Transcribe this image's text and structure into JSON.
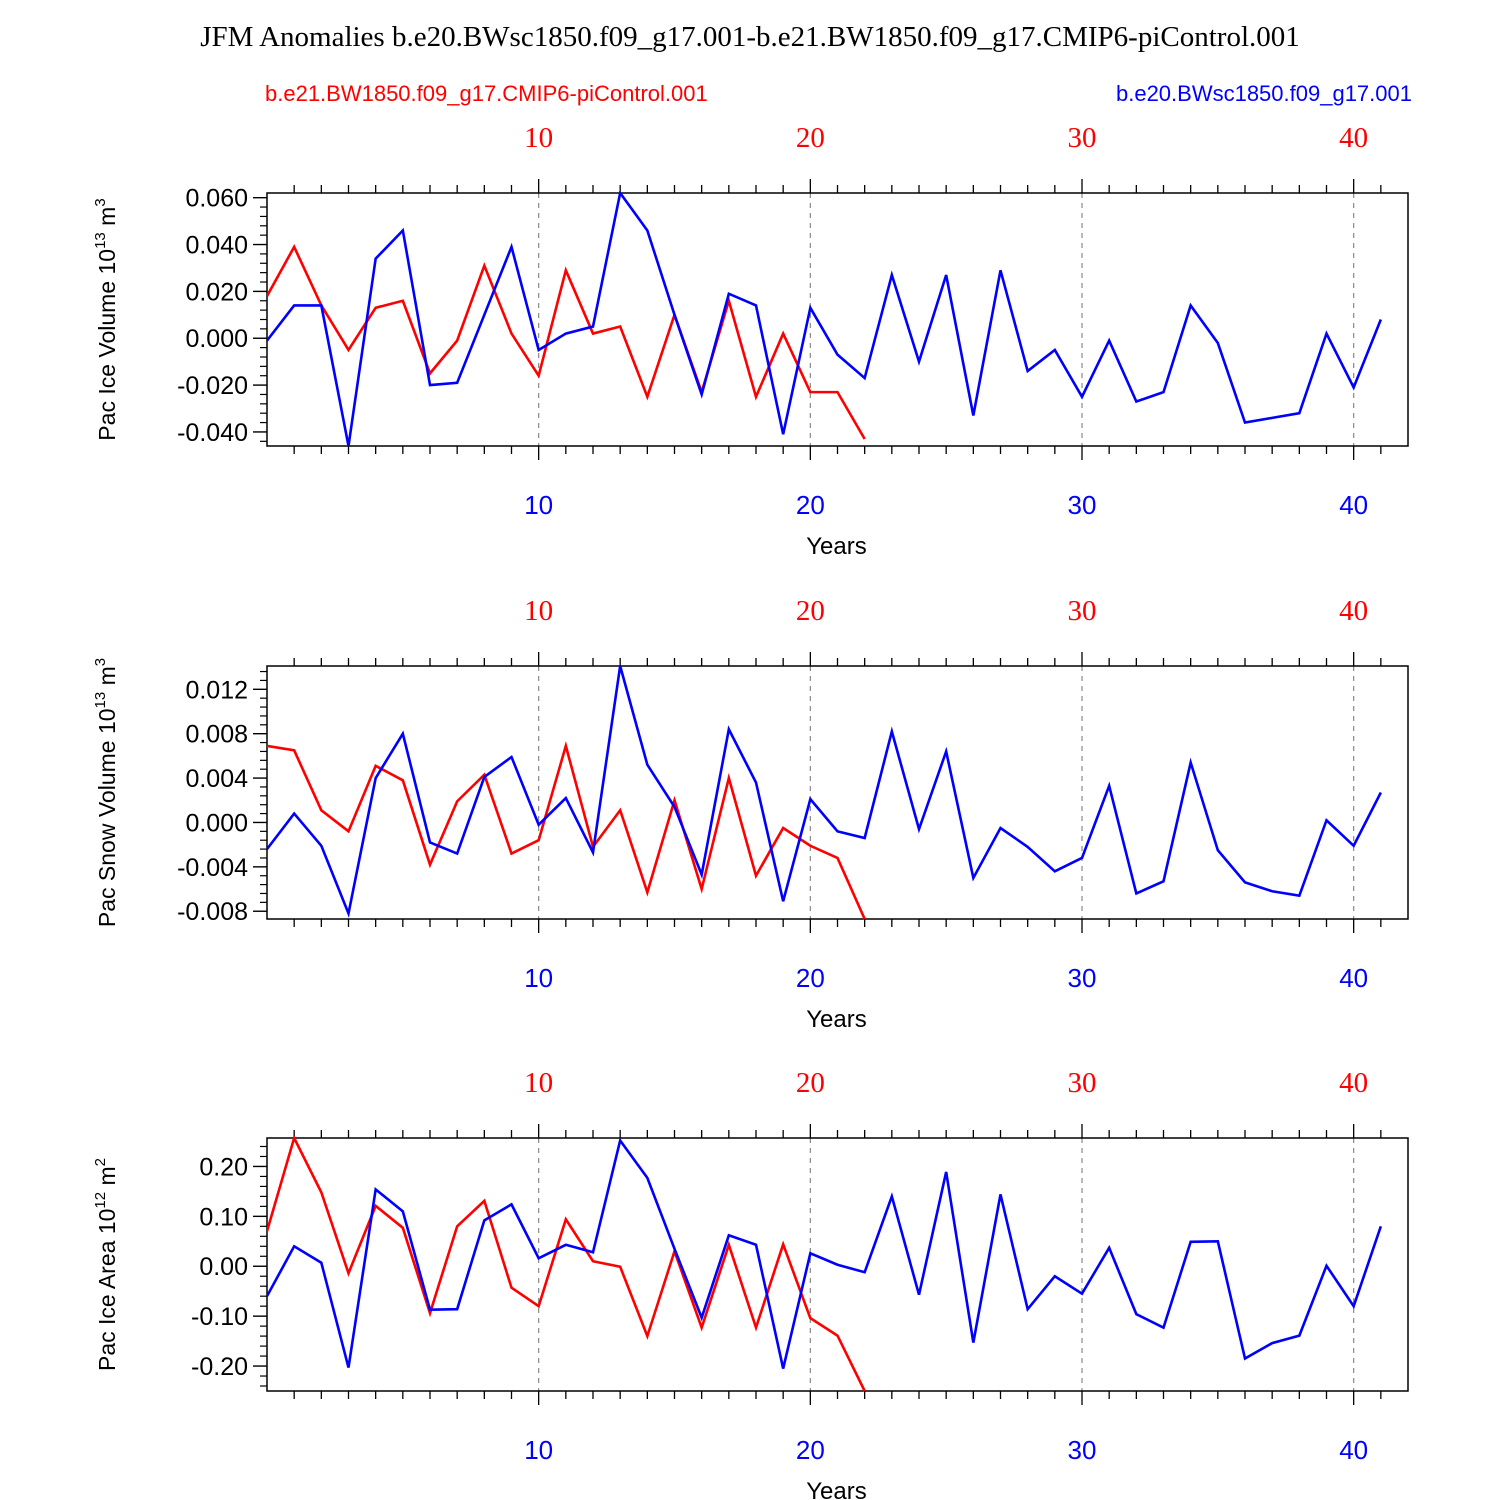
{
  "title": "JFM Anomalies b.e20.BWsc1850.f09_g17.001-b.e21.BW1850.f09_g17.CMIP6-piControl.001",
  "legend": {
    "red_label": "b.e21.BW1850.f09_g17.CMIP6-piControl.001",
    "blue_label": "b.e20.BWsc1850.f09_g17.001"
  },
  "colors": {
    "red": "#ff0000",
    "blue": "#0000ff",
    "axis": "#000000",
    "grid": "#888888"
  },
  "chart_data": [
    {
      "type": "line",
      "ylabel": "Pac Ice Volume 10",
      "ylabel_sup": "13",
      "ylabel_unit": " m",
      "ylabel_unit_sup": "3",
      "xlabel": "Years",
      "xlim": [
        0,
        42
      ],
      "ylim": [
        -0.046,
        0.062
      ],
      "yticks": [
        -0.04,
        -0.02,
        0.0,
        0.02,
        0.04,
        0.06
      ],
      "ytick_labels": [
        "-0.040",
        "-0.020",
        "0.000",
        "0.020",
        "0.040",
        "0.060"
      ],
      "yminor_step": 0.004,
      "xticks": [
        10,
        20,
        30,
        40
      ],
      "xtick_labels": [
        "10",
        "20",
        "30",
        "40"
      ],
      "series": [
        {
          "name": "b.e21.BW1850.f09_g17.CMIP6-piControl.001",
          "color": "red",
          "values": [
            0.018,
            0.039,
            0.014,
            -0.005,
            0.013,
            0.016,
            -0.015,
            -0.001,
            0.031,
            0.002,
            -0.016,
            0.029,
            0.002,
            0.005,
            -0.025,
            0.01,
            -0.023,
            0.016,
            -0.025,
            0.002,
            -0.023,
            -0.023,
            -0.043
          ]
        },
        {
          "name": "b.e20.BWsc1850.f09_g17.001",
          "color": "blue",
          "values": [
            -0.001,
            0.014,
            0.014,
            -0.046,
            0.034,
            0.046,
            -0.02,
            -0.019,
            0.01,
            0.039,
            -0.005,
            0.002,
            0.005,
            0.062,
            0.046,
            0.01,
            -0.024,
            0.019,
            0.014,
            -0.041,
            0.013,
            -0.007,
            -0.017,
            0.027,
            -0.01,
            0.027,
            -0.033,
            0.029,
            -0.014,
            -0.005,
            -0.025,
            -0.001,
            -0.027,
            -0.023,
            0.014,
            -0.002,
            -0.036,
            -0.034,
            -0.032,
            0.002,
            -0.021,
            0.008
          ]
        }
      ]
    },
    {
      "type": "line",
      "ylabel": "Pac Snow Volume 10",
      "ylabel_sup": "13",
      "ylabel_unit": " m",
      "ylabel_unit_sup": "3",
      "xlabel": "Years",
      "xlim": [
        0,
        42
      ],
      "ylim": [
        -0.0087,
        0.0141
      ],
      "yticks": [
        -0.008,
        -0.004,
        0.0,
        0.004,
        0.008,
        0.012
      ],
      "ytick_labels": [
        "-0.008",
        "-0.004",
        "0.000",
        "0.004",
        "0.008",
        "0.012"
      ],
      "yminor_step": 0.0008,
      "xticks": [
        10,
        20,
        30,
        40
      ],
      "xtick_labels": [
        "10",
        "20",
        "30",
        "40"
      ],
      "series": [
        {
          "name": "b.e21.BW1850.f09_g17.CMIP6-piControl.001",
          "color": "red",
          "values": [
            0.0069,
            0.0065,
            0.0011,
            -0.0008,
            0.0051,
            0.0038,
            -0.0038,
            0.0019,
            0.0043,
            -0.0028,
            -0.0016,
            0.0069,
            -0.0022,
            0.0011,
            -0.0063,
            0.002,
            -0.006,
            0.004,
            -0.0048,
            -0.0005,
            -0.0021,
            -0.0032,
            -0.0087
          ]
        },
        {
          "name": "b.e20.BWsc1850.f09_g17.001",
          "color": "blue",
          "values": [
            -0.0024,
            0.0008,
            -0.0021,
            -0.0082,
            0.004,
            0.008,
            -0.0018,
            -0.0028,
            0.0041,
            0.0059,
            -0.0002,
            0.0022,
            -0.0027,
            0.0141,
            0.0052,
            0.0014,
            -0.0047,
            0.0084,
            0.0036,
            -0.0071,
            0.0021,
            -0.0008,
            -0.0014,
            0.0082,
            -0.0006,
            0.0064,
            -0.005,
            -0.0005,
            -0.0022,
            -0.0044,
            -0.0032,
            0.0033,
            -0.0064,
            -0.0053,
            0.0054,
            -0.0025,
            -0.0054,
            -0.0062,
            -0.0066,
            0.0002,
            -0.0021,
            0.0027
          ]
        }
      ]
    },
    {
      "type": "line",
      "ylabel": "Pac Ice Area 10",
      "ylabel_sup": "12",
      "ylabel_unit": " m",
      "ylabel_unit_sup": "2",
      "xlabel": "Years",
      "xlim": [
        0,
        42
      ],
      "ylim": [
        -0.25,
        0.257
      ],
      "yticks": [
        -0.2,
        -0.1,
        0.0,
        0.1,
        0.2
      ],
      "ytick_labels": [
        "-0.20",
        "-0.10",
        "0.00",
        "0.10",
        "0.20"
      ],
      "yminor_step": 0.02,
      "xticks": [
        10,
        20,
        30,
        40
      ],
      "xtick_labels": [
        "10",
        "20",
        "30",
        "40"
      ],
      "series": [
        {
          "name": "b.e21.BW1850.f09_g17.CMIP6-piControl.001",
          "color": "red",
          "values": [
            0.07,
            0.257,
            0.148,
            -0.014,
            0.121,
            0.077,
            -0.094,
            0.08,
            0.131,
            -0.043,
            -0.08,
            0.094,
            0.01,
            -0.001,
            -0.14,
            0.03,
            -0.123,
            0.043,
            -0.123,
            0.044,
            -0.104,
            -0.139,
            -0.25
          ]
        },
        {
          "name": "b.e20.BWsc1850.f09_g17.001",
          "color": "blue",
          "values": [
            -0.06,
            0.04,
            0.007,
            -0.203,
            0.154,
            0.11,
            -0.087,
            -0.086,
            0.092,
            0.124,
            0.016,
            0.043,
            0.028,
            0.252,
            0.177,
            0.035,
            -0.103,
            0.062,
            0.043,
            -0.205,
            0.026,
            0.003,
            -0.012,
            0.14,
            -0.057,
            0.189,
            -0.153,
            0.144,
            -0.086,
            -0.02,
            -0.055,
            0.037,
            -0.096,
            -0.123,
            0.049,
            0.05,
            -0.185,
            -0.154,
            -0.139,
            0.001,
            -0.08,
            0.08
          ]
        }
      ]
    }
  ]
}
